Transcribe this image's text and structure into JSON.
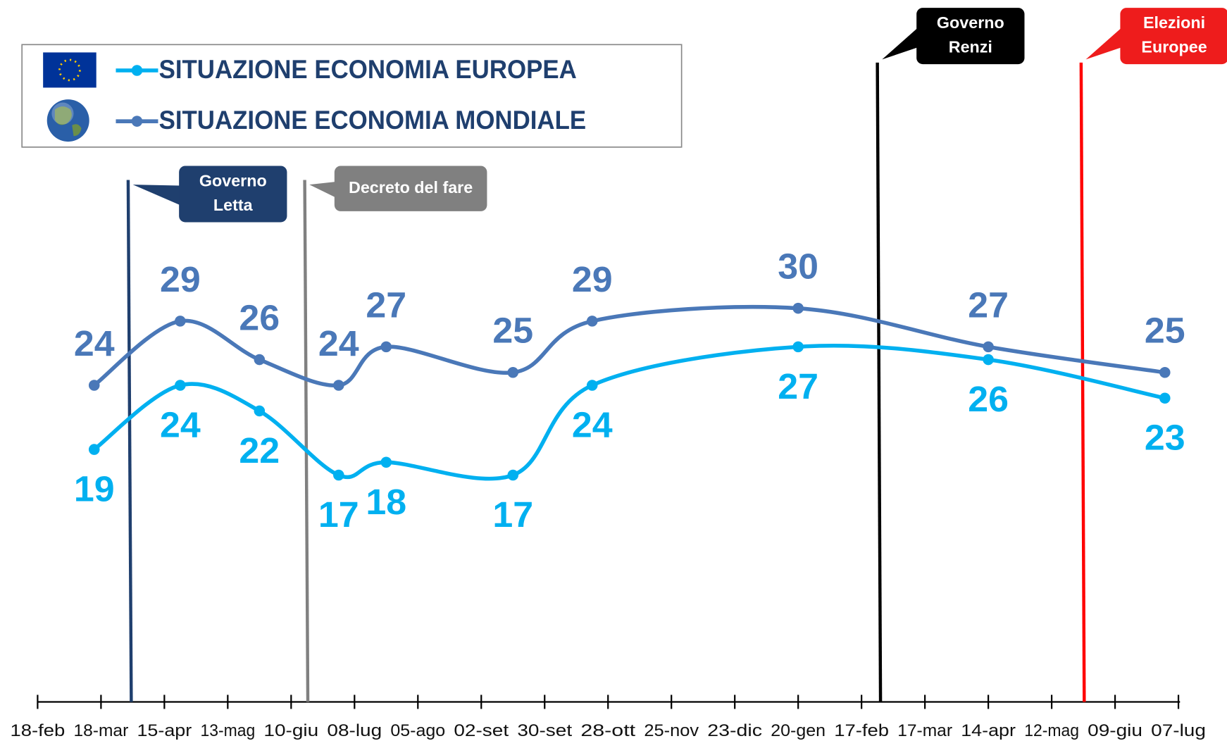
{
  "chart_data": {
    "type": "line",
    "xlim": [
      0,
      504
    ],
    "xticks": [
      {
        "value": 0,
        "label": "18-feb"
      },
      {
        "value": 28,
        "label": "18-mar"
      },
      {
        "value": 56,
        "label": "15-apr"
      },
      {
        "value": 84,
        "label": "13-mag"
      },
      {
        "value": 112,
        "label": "10-giu"
      },
      {
        "value": 140,
        "label": "08-lug"
      },
      {
        "value": 168,
        "label": "05-ago"
      },
      {
        "value": 196,
        "label": "02-set"
      },
      {
        "value": 224,
        "label": "30-set"
      },
      {
        "value": 252,
        "label": "28-ott"
      },
      {
        "value": 280,
        "label": "25-nov"
      },
      {
        "value": 308,
        "label": "23-dic"
      },
      {
        "value": 336,
        "label": "20-gen"
      },
      {
        "value": 364,
        "label": "17-feb"
      },
      {
        "value": 392,
        "label": "17-mar"
      },
      {
        "value": 420,
        "label": "14-apr"
      },
      {
        "value": 448,
        "label": "12-mag"
      },
      {
        "value": 476,
        "label": "09-giu"
      },
      {
        "value": 504,
        "label": "07-lug"
      }
    ],
    "ylim": [
      0,
      50
    ],
    "series": [
      {
        "name": "SITUAZIONE ECONOMIA EUROPEA",
        "color": "#00b0f0",
        "label_side": "below",
        "x": [
          25,
          63,
          98,
          133,
          154,
          210,
          245,
          336,
          420,
          498
        ],
        "values": [
          19,
          24,
          22,
          17,
          18,
          17,
          24,
          27,
          26,
          23
        ]
      },
      {
        "name": "SITUAZIONE ECONOMIA MONDIALE",
        "color": "#4a78b8",
        "label_side": "above",
        "x": [
          25,
          63,
          98,
          133,
          154,
          210,
          245,
          336,
          420,
          498
        ],
        "values": [
          24,
          29,
          26,
          24,
          27,
          25,
          29,
          30,
          27,
          25
        ]
      }
    ],
    "annotations": [
      {
        "x": 40,
        "lines": [
          "Governo",
          "Letta"
        ],
        "color": "#1f3f6e",
        "box": "#1f3f6e",
        "level": "low"
      },
      {
        "x": 118,
        "lines": [
          "Decreto del fare"
        ],
        "color": "#808080",
        "box": "#808080",
        "level": "low"
      },
      {
        "x": 371,
        "lines": [
          "Governo",
          "Renzi"
        ],
        "color": "#000000",
        "box": "#000000",
        "level": "high"
      },
      {
        "x": 461,
        "lines": [
          "Elezioni",
          "Europee"
        ],
        "color": "#ff0000",
        "box": "#ee1c1c",
        "level": "high"
      }
    ]
  }
}
